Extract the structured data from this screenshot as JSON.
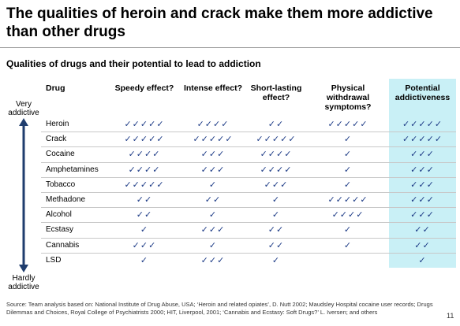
{
  "header": {
    "title": "The qualities of heroin and crack make them more addictive than other drugs",
    "subtitle": "Qualities of drugs and their potential to lead to addiction"
  },
  "table": {
    "columns": [
      "Drug",
      "Speedy effect?",
      "Intense effect?",
      "Short-lasting effect?",
      "Physical withdrawal symptoms?",
      "Potential addictiveness"
    ],
    "rows": [
      [
        "Heroin",
        "✓✓✓✓✓",
        "✓✓✓✓",
        "✓✓",
        "✓✓✓✓✓",
        "✓✓✓✓✓"
      ],
      [
        "Crack",
        "✓✓✓✓✓",
        "✓✓✓✓✓",
        "✓✓✓✓✓",
        "✓",
        "✓✓✓✓✓"
      ],
      [
        "Cocaine",
        "✓✓✓✓",
        "✓✓✓",
        "✓✓✓✓",
        "✓",
        "✓✓✓"
      ],
      [
        "Amphetamines",
        "✓✓✓✓",
        "✓✓✓",
        "✓✓✓✓",
        "✓",
        "✓✓✓"
      ],
      [
        "Tobacco",
        "✓✓✓✓✓",
        "✓",
        "✓✓✓",
        "✓",
        "✓✓✓"
      ],
      [
        "Methadone",
        "✓✓",
        "✓✓",
        "✓",
        "✓✓✓✓✓",
        "✓✓✓"
      ],
      [
        "Alcohol",
        "✓✓",
        "✓",
        "✓",
        "✓✓✓✓",
        "✓✓✓"
      ],
      [
        "Ecstasy",
        "✓",
        "✓✓✓",
        "✓✓",
        "✓",
        "✓✓"
      ],
      [
        "Cannabis",
        "✓✓✓",
        "✓",
        "✓✓",
        "✓",
        "✓✓"
      ],
      [
        "LSD",
        "✓",
        "✓✓✓",
        "✓",
        "",
        "✓"
      ]
    ]
  },
  "scale": {
    "top": "Very addictive",
    "bottom": "Hardly addictive"
  },
  "footer": {
    "source": "Source: Team analysis based on: National Institute of Drug Abuse, USA; ‘Heroin and related opiates’, D. Nutt 2002; Maudsley Hospital cocaine user records; Drugs Dilemmas and Choices, Royal College of Psychiatrists 2000; HIT, Liverpool, 2001; ‘Cannabis and Ecstasy: Soft Drugs?’ L. Iversen; and others",
    "page": "11"
  }
}
